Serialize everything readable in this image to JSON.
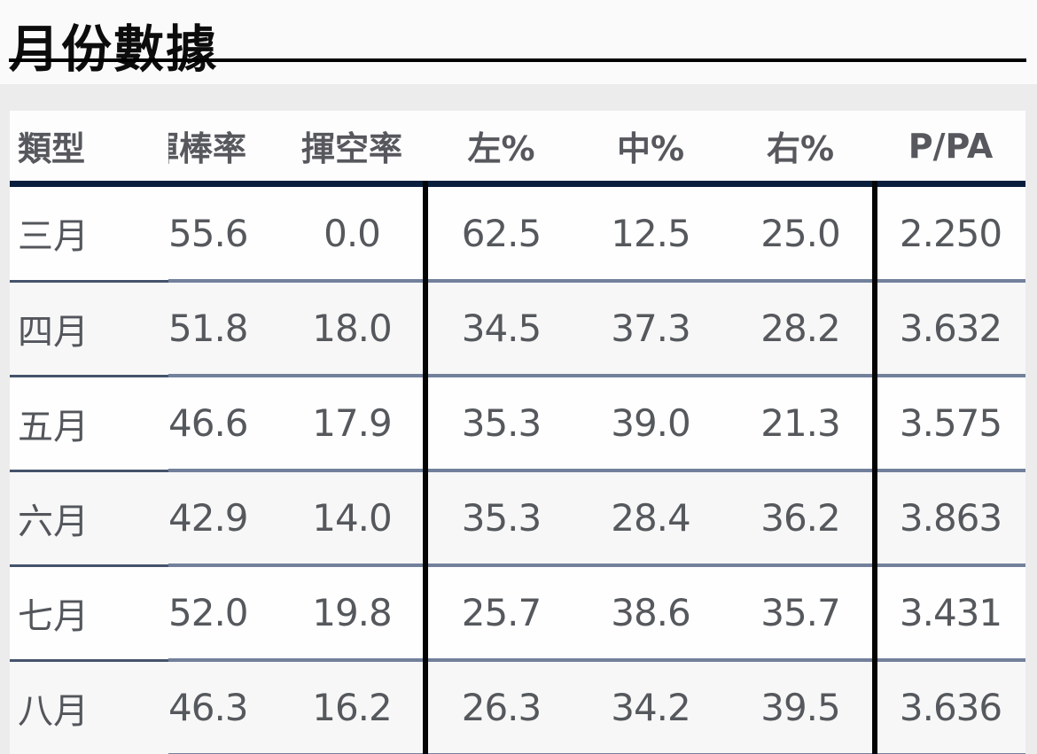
{
  "page": {
    "title": "月份數據"
  },
  "table": {
    "columns": [
      {
        "key": "type",
        "label": "類型"
      },
      {
        "key": "swing_rate",
        "label": "揮棒率"
      },
      {
        "key": "whiff_rate",
        "label": "揮空率"
      },
      {
        "key": "left_pct",
        "label": "左%"
      },
      {
        "key": "center_pct",
        "label": "中%"
      },
      {
        "key": "right_pct",
        "label": "右%"
      },
      {
        "key": "p_pa",
        "label": "P/PA"
      }
    ],
    "rows": [
      {
        "month": "三月",
        "values": [
          "55.6",
          "0.0",
          "62.5",
          "12.5",
          "25.0",
          "2.250"
        ]
      },
      {
        "month": "四月",
        "values": [
          "51.8",
          "18.0",
          "34.5",
          "37.3",
          "28.2",
          "3.632"
        ]
      },
      {
        "month": "五月",
        "values": [
          "46.6",
          "17.9",
          "35.3",
          "39.0",
          "21.3",
          "3.575"
        ]
      },
      {
        "month": "六月",
        "values": [
          "42.9",
          "14.0",
          "35.3",
          "28.4",
          "36.2",
          "3.863"
        ]
      },
      {
        "month": "七月",
        "values": [
          "52.0",
          "19.8",
          "25.7",
          "38.6",
          "35.7",
          "3.431"
        ]
      },
      {
        "month": "八月",
        "values": [
          "46.3",
          "16.2",
          "26.3",
          "34.2",
          "39.5",
          "3.636"
        ]
      }
    ]
  },
  "chart_data": {
    "type": "table",
    "title": "月份數據",
    "columns": [
      "類型",
      "揮棒率",
      "揮空率",
      "左%",
      "中%",
      "右%",
      "P/PA"
    ],
    "rows": [
      [
        "三月",
        55.6,
        0.0,
        62.5,
        12.5,
        25.0,
        2.25
      ],
      [
        "四月",
        51.8,
        18.0,
        34.5,
        37.3,
        28.2,
        3.632
      ],
      [
        "五月",
        46.6,
        17.9,
        35.3,
        39.0,
        21.3,
        3.575
      ],
      [
        "六月",
        42.9,
        14.0,
        35.3,
        28.4,
        36.2,
        3.863
      ],
      [
        "七月",
        52.0,
        19.8,
        25.7,
        38.6,
        35.7,
        3.431
      ],
      [
        "八月",
        46.3,
        16.2,
        26.3,
        34.2,
        39.5,
        3.636
      ]
    ],
    "layout_hints": {
      "group_separators_after_columns": [
        2,
        5
      ],
      "header_rule_color": "#0a1e3d",
      "row_separator_color": "#72809b",
      "zebra_striping": true
    }
  },
  "colors": {
    "page_bg": "#fafafa",
    "band_bg": "#ececec",
    "card_bg": "#fdfdfd",
    "row_alt_bg": "#f7f7f7",
    "title_text": "#0c0c0c",
    "header_text": "#56585d",
    "cell_text": "#55585c",
    "title_rule": "#000000",
    "header_rule_navy": "#0a1e3d",
    "row_separator": "#72809b",
    "row_separator_first_col": "#45536b",
    "vertical_divider": "#050505"
  }
}
